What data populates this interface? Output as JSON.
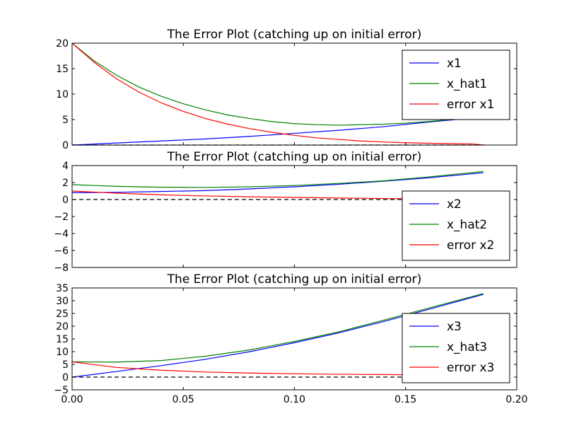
{
  "chart_data": [
    {
      "type": "line",
      "title": "The Error Plot (catching up on initial error)",
      "xlim": [
        0.0,
        0.2
      ],
      "ylim": [
        0,
        20
      ],
      "x_ticks": [],
      "y_ticks": [
        "0",
        "5",
        "10",
        "15",
        "20"
      ],
      "legend_position": "top-right",
      "series": [
        {
          "name": "x1",
          "color": "#0000ff",
          "x": [
            0,
            0.02,
            0.04,
            0.06,
            0.08,
            0.1,
            0.12,
            0.14,
            0.16,
            0.185
          ],
          "values": [
            0,
            0.4,
            0.8,
            1.2,
            1.7,
            2.3,
            2.9,
            3.6,
            4.5,
            5.5
          ]
        },
        {
          "name": "x_hat1",
          "color": "#008000",
          "x": [
            0,
            0.01,
            0.02,
            0.03,
            0.04,
            0.05,
            0.06,
            0.07,
            0.08,
            0.09,
            0.1,
            0.11,
            0.12,
            0.13,
            0.14,
            0.15,
            0.16,
            0.17,
            0.185
          ],
          "values": [
            20,
            16.5,
            13.7,
            11.4,
            9.6,
            8.1,
            6.9,
            5.9,
            5.2,
            4.6,
            4.2,
            4.0,
            3.9,
            4.0,
            4.1,
            4.3,
            4.6,
            5.0,
            5.6
          ]
        },
        {
          "name": "error x1",
          "color": "#ff0000",
          "x": [
            0,
            0.01,
            0.02,
            0.03,
            0.04,
            0.05,
            0.06,
            0.07,
            0.08,
            0.09,
            0.1,
            0.11,
            0.12,
            0.13,
            0.14,
            0.15,
            0.16,
            0.17,
            0.18,
            0.185
          ],
          "values": [
            20,
            16.2,
            13.0,
            10.4,
            8.3,
            6.6,
            5.2,
            4.1,
            3.2,
            2.5,
            1.9,
            1.4,
            1.1,
            0.8,
            0.6,
            0.45,
            0.35,
            0.28,
            0.22,
            0.0
          ]
        },
        {
          "name": "",
          "color": "#000000",
          "dashed": true,
          "x": [
            0,
            0.185
          ],
          "values": [
            0,
            0
          ]
        }
      ]
    },
    {
      "type": "line",
      "title": "The Error Plot (catching up on initial error)",
      "xlim": [
        0.0,
        0.2
      ],
      "ylim": [
        -8,
        4
      ],
      "x_ticks": [],
      "y_ticks": [
        "−8",
        "−6",
        "−4",
        "−2",
        "0",
        "2",
        "4"
      ],
      "legend_position": "bottom-right",
      "series": [
        {
          "name": "x2",
          "color": "#0000ff",
          "x": [
            0,
            0.02,
            0.04,
            0.06,
            0.08,
            0.1,
            0.12,
            0.14,
            0.16,
            0.185
          ],
          "values": [
            0.8,
            0.85,
            0.95,
            1.05,
            1.25,
            1.5,
            1.8,
            2.15,
            2.55,
            3.15
          ]
        },
        {
          "name": "x_hat2",
          "color": "#008000",
          "x": [
            0,
            0.02,
            0.04,
            0.06,
            0.08,
            0.1,
            0.12,
            0.14,
            0.16,
            0.185
          ],
          "values": [
            1.75,
            1.55,
            1.45,
            1.42,
            1.5,
            1.65,
            1.9,
            2.2,
            2.65,
            3.3
          ]
        },
        {
          "name": "error x2",
          "color": "#ff0000",
          "x": [
            0,
            0.02,
            0.04,
            0.06,
            0.08,
            0.1,
            0.12,
            0.14,
            0.15,
            0.16,
            0.185
          ],
          "values": [
            1.0,
            0.75,
            0.55,
            0.42,
            0.32,
            0.25,
            0.18,
            0.12,
            0.1,
            0.08,
            0.05
          ]
        },
        {
          "name": "",
          "color": "#000000",
          "dashed": true,
          "x": [
            0,
            0.185
          ],
          "values": [
            0,
            0
          ]
        }
      ]
    },
    {
      "type": "line",
      "title": "The Error Plot (catching up on initial error)",
      "xlim": [
        0.0,
        0.2
      ],
      "ylim": [
        -5,
        35
      ],
      "x_ticks": [
        "0.00",
        "0.05",
        "0.10",
        "0.15",
        "0.20"
      ],
      "y_ticks": [
        "−5",
        "0",
        "5",
        "10",
        "15",
        "20",
        "25",
        "30",
        "35"
      ],
      "legend_position": "bottom-right",
      "series": [
        {
          "name": "x3",
          "color": "#0000ff",
          "x": [
            0,
            0.02,
            0.04,
            0.06,
            0.08,
            0.1,
            0.12,
            0.14,
            0.16,
            0.185
          ],
          "values": [
            0,
            2.2,
            4.5,
            7.0,
            10.0,
            13.5,
            17.4,
            21.8,
            26.5,
            32.5
          ]
        },
        {
          "name": "x_hat3",
          "color": "#008000",
          "x": [
            0,
            0.02,
            0.04,
            0.06,
            0.08,
            0.1,
            0.12,
            0.14,
            0.16,
            0.185
          ],
          "values": [
            6.0,
            5.9,
            6.5,
            8.2,
            10.7,
            14.0,
            17.8,
            22.3,
            27.0,
            32.8
          ]
        },
        {
          "name": "error x3",
          "color": "#ff0000",
          "x": [
            0,
            0.02,
            0.04,
            0.06,
            0.08,
            0.1,
            0.12,
            0.14,
            0.16,
            0.185
          ],
          "values": [
            6.0,
            3.8,
            2.7,
            2.0,
            1.6,
            1.3,
            1.1,
            1.0,
            0.85,
            0.7
          ]
        },
        {
          "name": "",
          "color": "#000000",
          "dashed": true,
          "x": [
            0,
            0.185
          ],
          "values": [
            0,
            0
          ]
        }
      ]
    }
  ]
}
